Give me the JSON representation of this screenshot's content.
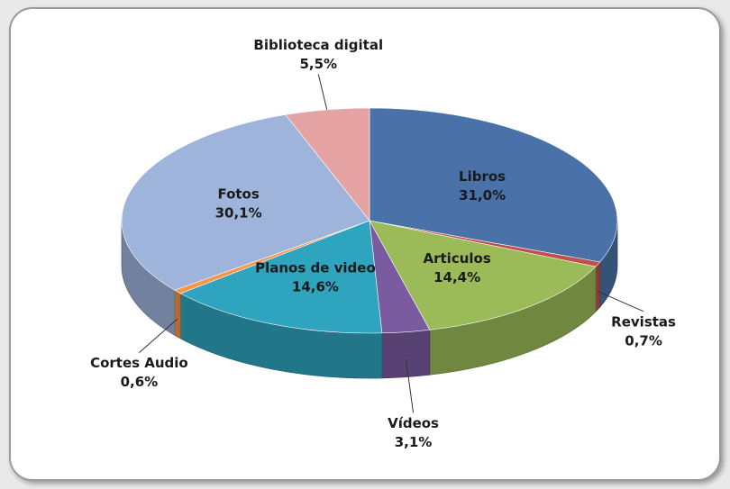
{
  "chart_data": {
    "type": "pie3d",
    "categories": [
      "Libros",
      "Revistas",
      "Articulos",
      "Vídeos",
      "Planos de video",
      "Cortes Audio",
      "Fotos",
      "Biblioteca digital"
    ],
    "values": [
      31.0,
      0.7,
      14.4,
      3.1,
      14.6,
      0.6,
      30.1,
      5.5
    ],
    "value_labels": [
      "31,0%",
      "0,7%",
      "14,4%",
      "3,1%",
      "14,6%",
      "0,6%",
      "30,1%",
      "5,5%"
    ],
    "colors": [
      "#4a72a8",
      "#c0504d",
      "#9bbb59",
      "#7a5ba0",
      "#2ea4bf",
      "#f79646",
      "#9fb4db",
      "#e6a3a3"
    ]
  }
}
